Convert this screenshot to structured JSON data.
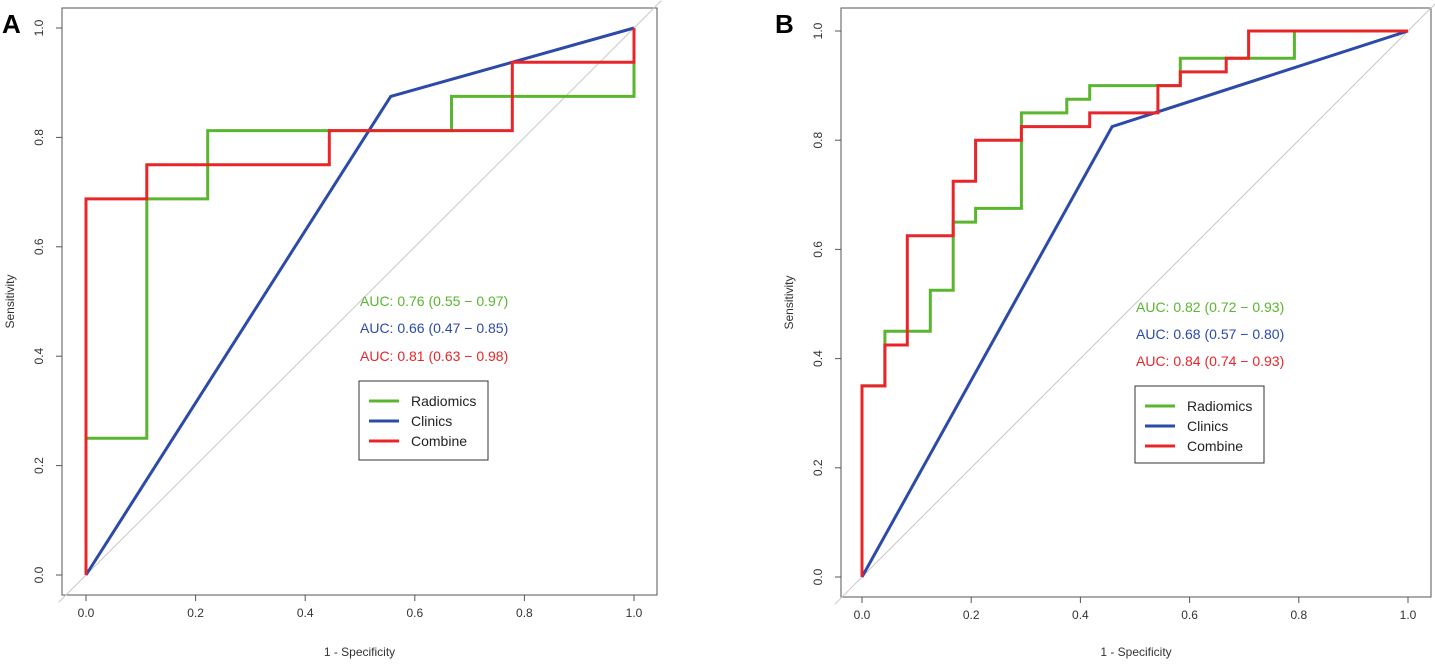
{
  "chart_data": [
    {
      "panel": "A",
      "type": "line",
      "xlabel": "1 - Specificity",
      "ylabel": "Sensitivity",
      "xlim": [
        0,
        1
      ],
      "ylim": [
        0,
        1
      ],
      "ticks": [
        "0.0",
        "0.2",
        "0.4",
        "0.6",
        "0.8",
        "1.0"
      ],
      "series": [
        {
          "name": "Radiomics",
          "color": "#5ab52f",
          "x": [
            0,
            0,
            0.111,
            0.111,
            0.222,
            0.222,
            0.667,
            0.667,
            1,
            1
          ],
          "y": [
            0,
            0.25,
            0.25,
            0.6875,
            0.6875,
            0.8125,
            0.8125,
            0.875,
            0.875,
            1
          ]
        },
        {
          "name": "Clinics",
          "color": "#2c4aa8",
          "x": [
            0,
            0.556,
            1
          ],
          "y": [
            0,
            0.875,
            1
          ]
        },
        {
          "name": "Combine",
          "color": "#e8262a",
          "x": [
            0,
            0,
            0.111,
            0.111,
            0.444,
            0.444,
            0.778,
            0.778,
            1,
            1
          ],
          "y": [
            0,
            0.6875,
            0.6875,
            0.75,
            0.75,
            0.8125,
            0.8125,
            0.9375,
            0.9375,
            1
          ]
        }
      ],
      "annotations": [
        {
          "text": "AUC: 0.76 (0.55 − 0.97)",
          "color": "#5ab52f"
        },
        {
          "text": "AUC: 0.66 (0.47 − 0.85)",
          "color": "#2c4aa8"
        },
        {
          "text": "AUC: 0.81 (0.63 − 0.98)",
          "color": "#e8262a"
        }
      ],
      "legend": [
        "Radiomics",
        "Clinics",
        "Combine"
      ]
    },
    {
      "panel": "B",
      "type": "line",
      "xlabel": "1 - Specificity",
      "ylabel": "Sensitivity",
      "xlim": [
        0,
        1
      ],
      "ylim": [
        0,
        1
      ],
      "ticks": [
        "0.0",
        "0.2",
        "0.4",
        "0.6",
        "0.8",
        "1.0"
      ],
      "series": [
        {
          "name": "Radiomics",
          "color": "#5ab52f",
          "x": [
            0,
            0,
            0.042,
            0.042,
            0.125,
            0.125,
            0.167,
            0.167,
            0.208,
            0.208,
            0.292,
            0.292,
            0.375,
            0.375,
            0.417,
            0.417,
            0.583,
            0.583,
            0.792,
            0.792,
            1
          ],
          "y": [
            0,
            0.35,
            0.35,
            0.45,
            0.45,
            0.525,
            0.525,
            0.65,
            0.65,
            0.675,
            0.675,
            0.85,
            0.85,
            0.875,
            0.875,
            0.9,
            0.9,
            0.95,
            0.95,
            1,
            1
          ]
        },
        {
          "name": "Clinics",
          "color": "#2c4aa8",
          "x": [
            0,
            0.458,
            1
          ],
          "y": [
            0,
            0.825,
            1
          ]
        },
        {
          "name": "Combine",
          "color": "#e8262a",
          "x": [
            0,
            0,
            0.042,
            0.042,
            0.083,
            0.083,
            0.167,
            0.167,
            0.208,
            0.208,
            0.292,
            0.292,
            0.417,
            0.417,
            0.542,
            0.542,
            0.583,
            0.583,
            0.667,
            0.667,
            0.708,
            0.708,
            1
          ],
          "y": [
            0,
            0.35,
            0.35,
            0.425,
            0.425,
            0.625,
            0.625,
            0.725,
            0.725,
            0.8,
            0.8,
            0.825,
            0.825,
            0.85,
            0.85,
            0.9,
            0.9,
            0.925,
            0.925,
            0.95,
            0.95,
            1,
            1
          ]
        }
      ],
      "annotations": [
        {
          "text": "AUC: 0.82 (0.72 − 0.93)",
          "color": "#5ab52f"
        },
        {
          "text": "AUC: 0.68 (0.57 − 0.80)",
          "color": "#2c4aa8"
        },
        {
          "text": "AUC: 0.84 (0.74 − 0.93)",
          "color": "#e8262a"
        }
      ],
      "legend": [
        "Radiomics",
        "Clinics",
        "Combine"
      ]
    }
  ]
}
